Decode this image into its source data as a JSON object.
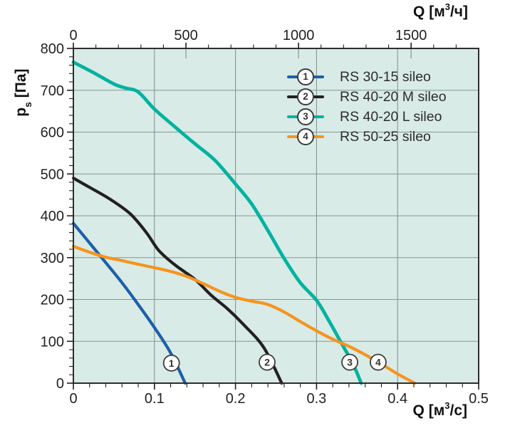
{
  "figure": {
    "plot_bg": "#d8ebe6",
    "grid_color": "#879693",
    "axis_color": "#2e2e2e",
    "tick_color": "#231f20",
    "text_color": "#231f20",
    "marker_fill": "#ffffff",
    "marker_stroke": "#3c3c3c",
    "marker_text_color": "#333333"
  },
  "axes": {
    "left": {
      "title_main": "p",
      "title_sub": "s",
      "title_unit": " [Па]"
    },
    "top": {
      "title_pre": "Q [м",
      "title_sup": "3",
      "title_post": "/ч]"
    },
    "bottom": {
      "title_pre": "Q [м",
      "title_sup": "3",
      "title_post": "/с]"
    }
  },
  "legend": {
    "items": [
      {
        "num": "1",
        "label": "RS 30-15 sileo",
        "color": "#1e5fa9"
      },
      {
        "num": "2",
        "label": "RS 40-20 M sileo",
        "color": "#231f20"
      },
      {
        "num": "3",
        "label": "RS 40-20 L sileo",
        "color": "#04b2a0"
      },
      {
        "num": "4",
        "label": "RS 50-25 sileo",
        "color": "#f6941e"
      }
    ]
  },
  "chart_data": {
    "type": "line",
    "xlabel_bottom": "Q [м3/с]",
    "xlabel_top": "Q [м3/ч]",
    "ylabel": "ps [Па]",
    "xlim": [
      0,
      0.5
    ],
    "ylim": [
      0,
      800
    ],
    "top_axis_unit_per_bottom_unit": 3600,
    "grid": true,
    "legend_position": "top-right-inside",
    "x_ticks_bottom": [
      {
        "label": "0",
        "v": 0
      },
      {
        "label": "0.1",
        "v": 0.1
      },
      {
        "label": "0.2",
        "v": 0.2
      },
      {
        "label": "0.3",
        "v": 0.3
      },
      {
        "label": "0.4",
        "v": 0.4
      },
      {
        "label": "0.5",
        "v": 0.5
      }
    ],
    "x_minor_step_bottom": 0.02,
    "x_ticks_top": [
      {
        "label": "0",
        "v": 0
      },
      {
        "label": "500",
        "v": 500
      },
      {
        "label": "1000",
        "v": 1000
      },
      {
        "label": "1500",
        "v": 1500
      }
    ],
    "x_minor_step_top": 100,
    "y_ticks": [
      {
        "label": "0",
        "v": 0
      },
      {
        "label": "100",
        "v": 100
      },
      {
        "label": "200",
        "v": 200
      },
      {
        "label": "300",
        "v": 300
      },
      {
        "label": "400",
        "v": 400
      },
      {
        "label": "500",
        "v": 500
      },
      {
        "label": "600",
        "v": 600
      },
      {
        "label": "700",
        "v": 700
      },
      {
        "label": "800",
        "v": 800
      }
    ],
    "y_minor_step": 20,
    "series": [
      {
        "name": "RS 30-15 sileo",
        "number": "1",
        "color": "#1e5fa9",
        "width": 4.2,
        "points": [
          [
            0,
            382
          ],
          [
            0.02,
            335
          ],
          [
            0.04,
            288
          ],
          [
            0.06,
            240
          ],
          [
            0.08,
            188
          ],
          [
            0.1,
            133
          ],
          [
            0.12,
            72
          ],
          [
            0.138,
            0
          ]
        ]
      },
      {
        "name": "RS 40-20 M sileo",
        "number": "2",
        "color": "#231f20",
        "width": 4.2,
        "points": [
          [
            0,
            490
          ],
          [
            0.02,
            468
          ],
          [
            0.045,
            440
          ],
          [
            0.07,
            405
          ],
          [
            0.09,
            360
          ],
          [
            0.105,
            318
          ],
          [
            0.125,
            283
          ],
          [
            0.15,
            248
          ],
          [
            0.17,
            210
          ],
          [
            0.19,
            178
          ],
          [
            0.21,
            140
          ],
          [
            0.235,
            85
          ],
          [
            0.257,
            0
          ]
        ]
      },
      {
        "name": "RS 40-20 L sileo",
        "number": "3",
        "color": "#04b2a0",
        "width": 4.8,
        "points": [
          [
            0,
            767
          ],
          [
            0.025,
            742
          ],
          [
            0.05,
            715
          ],
          [
            0.065,
            705
          ],
          [
            0.08,
            696
          ],
          [
            0.1,
            655
          ],
          [
            0.125,
            613
          ],
          [
            0.15,
            572
          ],
          [
            0.175,
            532
          ],
          [
            0.2,
            476
          ],
          [
            0.22,
            428
          ],
          [
            0.24,
            365
          ],
          [
            0.26,
            298
          ],
          [
            0.28,
            240
          ],
          [
            0.3,
            198
          ],
          [
            0.315,
            150
          ],
          [
            0.33,
            98
          ],
          [
            0.345,
            46
          ],
          [
            0.355,
            0
          ]
        ]
      },
      {
        "name": "RS 50-25 sileo",
        "number": "4",
        "color": "#f6941e",
        "width": 4.2,
        "points": [
          [
            0,
            327
          ],
          [
            0.02,
            313
          ],
          [
            0.04,
            301
          ],
          [
            0.06,
            293
          ],
          [
            0.08,
            284
          ],
          [
            0.1,
            276
          ],
          [
            0.12,
            267
          ],
          [
            0.14,
            255
          ],
          [
            0.16,
            238
          ],
          [
            0.18,
            220
          ],
          [
            0.2,
            205
          ],
          [
            0.22,
            196
          ],
          [
            0.24,
            188
          ],
          [
            0.26,
            170
          ],
          [
            0.28,
            147
          ],
          [
            0.3,
            125
          ],
          [
            0.32,
            105
          ],
          [
            0.34,
            88
          ],
          [
            0.36,
            68
          ],
          [
            0.38,
            46
          ],
          [
            0.4,
            22
          ],
          [
            0.421,
            0
          ]
        ]
      }
    ],
    "curve_markers": [
      {
        "num": "1",
        "q": 0.121,
        "p": 48
      },
      {
        "num": "2",
        "q": 0.239,
        "p": 50
      },
      {
        "num": "3",
        "q": 0.341,
        "p": 50
      },
      {
        "num": "4",
        "q": 0.376,
        "p": 50
      }
    ]
  }
}
